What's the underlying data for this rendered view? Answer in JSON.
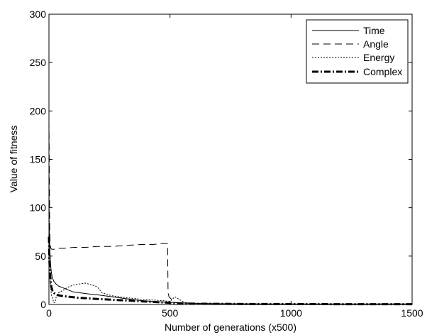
{
  "chart_data": {
    "type": "line",
    "title": "",
    "xlabel": "Number of generations (x500)",
    "ylabel": "Value of fitness",
    "xlim": [
      0,
      1500
    ],
    "ylim": [
      0,
      300
    ],
    "xticks": [
      0,
      500,
      1000,
      1500
    ],
    "yticks": [
      0,
      50,
      100,
      150,
      200,
      250,
      300
    ],
    "grid": false,
    "legend_position": "top-right",
    "series": [
      {
        "name": "Time",
        "line_style": "solid",
        "x": [
          0,
          2,
          4,
          6,
          8,
          10,
          14,
          20,
          30,
          40,
          60,
          80,
          100,
          130,
          160,
          200,
          260,
          320,
          380,
          440,
          480,
          520,
          560,
          600,
          700,
          800,
          900,
          1000,
          1100,
          1200,
          1300,
          1400,
          1500
        ],
        "y": [
          90,
          70,
          55,
          45,
          38,
          33,
          28,
          24,
          21,
          19,
          17,
          15,
          13,
          12,
          11,
          10,
          8,
          6,
          4,
          3,
          2.5,
          2,
          1.5,
          1,
          0.8,
          0.6,
          0.5,
          0.5,
          0.5,
          0.5,
          0.5,
          0.5,
          0.5
        ]
      },
      {
        "name": "Angle",
        "line_style": "dashed",
        "x": [
          0,
          1,
          2,
          3,
          5,
          8,
          12,
          20,
          30,
          60,
          100,
          150,
          200,
          260,
          320,
          380,
          430,
          470,
          490,
          492,
          496,
          500,
          520,
          600,
          800,
          1000,
          1200,
          1500
        ],
        "y": [
          190,
          160,
          120,
          80,
          62,
          58,
          57,
          57,
          58,
          58,
          59,
          59,
          60,
          60,
          61,
          62,
          62,
          63,
          63,
          12,
          8,
          7,
          2,
          1,
          0.5,
          0.5,
          0.5,
          0.5
        ]
      },
      {
        "name": "Energy",
        "line_style": "dotted",
        "x": [
          0,
          2,
          5,
          10,
          15,
          20,
          25,
          30,
          40,
          60,
          80,
          100,
          120,
          150,
          180,
          200,
          220,
          260,
          320,
          400,
          470,
          500,
          520,
          540,
          560,
          600,
          800,
          1000,
          1200,
          1500
        ],
        "y": [
          160,
          60,
          25,
          10,
          6,
          2,
          2,
          8,
          12,
          15,
          18,
          20,
          21,
          22,
          20,
          18,
          12,
          9,
          7,
          5,
          4,
          3,
          8,
          5,
          2,
          1,
          0.5,
          0.5,
          0.5,
          0.5
        ]
      },
      {
        "name": "Complex",
        "line_style": "dash-dot",
        "x": [
          0,
          2,
          4,
          6,
          8,
          10,
          15,
          20,
          30,
          50,
          80,
          120,
          180,
          250,
          330,
          400,
          480,
          520,
          560,
          600,
          800,
          1000,
          1200,
          1500
        ],
        "y": [
          70,
          45,
          35,
          28,
          22,
          18,
          14,
          12,
          10,
          9,
          8,
          7,
          6,
          5,
          4,
          3,
          2,
          1.5,
          1,
          0.8,
          0.5,
          0.4,
          0.3,
          0.3
        ]
      }
    ]
  }
}
